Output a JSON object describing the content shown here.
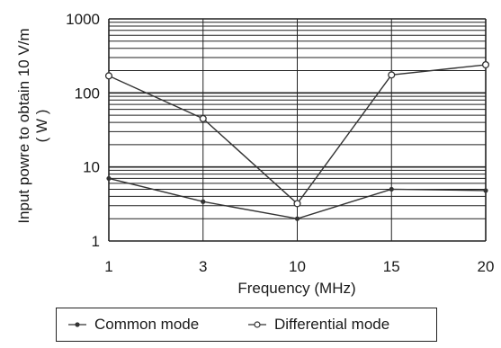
{
  "chart_data": {
    "type": "line",
    "title": "",
    "xlabel": "Frequency  (MHz)",
    "ylabel_line1": "Input powre to obtain 10 V/m",
    "ylabel_line2": "( W )",
    "y_scale": "log",
    "ylim": [
      1,
      1000
    ],
    "y_ticks": [
      "1",
      "10",
      "100",
      "1000"
    ],
    "categories": [
      "1",
      "3",
      "10",
      "15",
      "20"
    ],
    "grid": true,
    "legend_position": "bottom",
    "series": [
      {
        "name": "Common mode",
        "marker": "dot",
        "values": [
          7,
          3.4,
          2,
          5,
          4.8
        ]
      },
      {
        "name": "Differential mode",
        "marker": "open-circle",
        "values": [
          170,
          45,
          3.2,
          175,
          240
        ]
      }
    ]
  },
  "colors": {
    "line": "#333333",
    "grid": "#222222"
  }
}
